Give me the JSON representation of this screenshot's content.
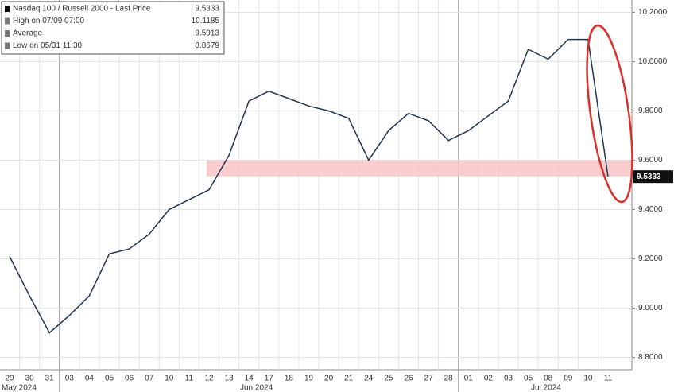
{
  "chart_data": {
    "type": "line",
    "categories": [
      "29",
      "30",
      "31",
      "03",
      "04",
      "05",
      "06",
      "07",
      "10",
      "11",
      "12",
      "13",
      "14",
      "17",
      "18",
      "19",
      "20",
      "21",
      "24",
      "25",
      "26",
      "27",
      "28",
      "01",
      "02",
      "03",
      "05",
      "08",
      "09",
      "10",
      "11"
    ],
    "month_labels": [
      "May 2024",
      "Jun 2024",
      "Jul 2024"
    ],
    "series": [
      {
        "name": "Nasdaq 100 / Russell 2000",
        "color": "#1f3550",
        "values": [
          9.21,
          9.05,
          8.9,
          8.97,
          9.05,
          9.22,
          9.24,
          9.3,
          9.4,
          9.44,
          9.48,
          9.62,
          9.84,
          9.88,
          9.85,
          9.82,
          9.8,
          9.77,
          9.6,
          9.72,
          9.79,
          9.76,
          9.68,
          9.72,
          9.78,
          9.84,
          10.05,
          10.01,
          10.09,
          10.09,
          9.5333
        ]
      }
    ],
    "legend": [
      {
        "label": "Nasdaq 100 / Russell 2000 - Last Price",
        "value": 9.5333
      },
      {
        "label": "High on 07/09 07:00",
        "value": 10.1185
      },
      {
        "label": "Average",
        "value": 9.5913
      },
      {
        "label": "Low on 05/31 11:30",
        "value": 8.8679
      }
    ],
    "last_value_label": "9.5333",
    "band": [
      9.535,
      9.6
    ],
    "band_color": "#f8c4c4",
    "ylim": [
      8.75,
      10.25
    ],
    "yticks": [
      {
        "value": 8.8,
        "label": "8.8000"
      },
      {
        "value": 9.0,
        "label": "9.0000"
      },
      {
        "value": 9.2,
        "label": "9.2000"
      },
      {
        "value": 9.4,
        "label": "9.4000"
      },
      {
        "value": 9.6,
        "label": "9.6000"
      },
      {
        "value": 9.8,
        "label": "9.8000"
      },
      {
        "value": 10.0,
        "label": "10.0000"
      },
      {
        "value": 10.2,
        "label": "10.2000"
      }
    ],
    "grid": true
  }
}
